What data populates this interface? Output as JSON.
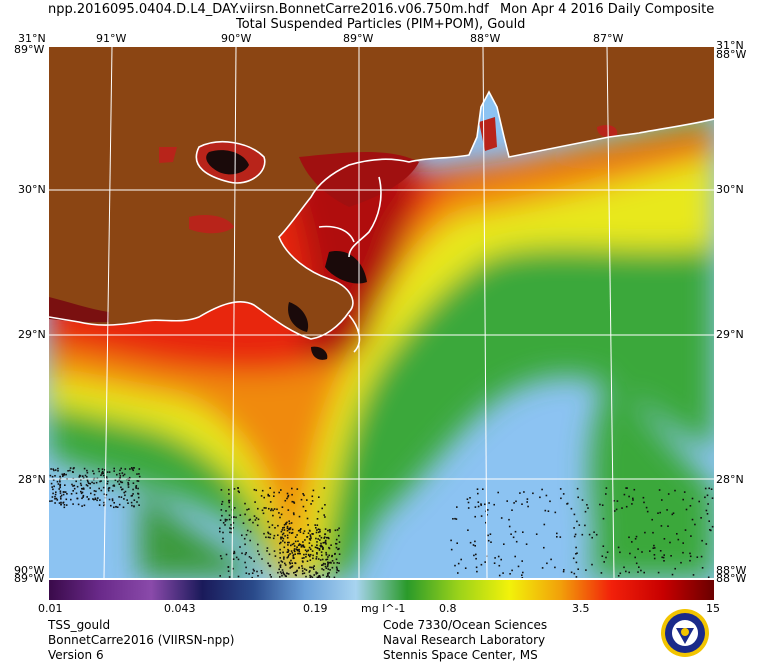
{
  "header": {
    "filename": "npp.2016095.0404.D.L4_DAY.viirsn.BonnetCarre2016.v06.750m.hdf",
    "date": "Mon Apr  4 2016 Daily Composite",
    "product": "Total Suspended Particles (PIM+POM), Gould"
  },
  "map": {
    "top_lon_labels": [
      "91°W",
      "90°W",
      "89°W",
      "88°W",
      "87°W"
    ],
    "left_lat_labels": [
      "31°N",
      "30°N",
      "29°N",
      "28°N",
      "89°W"
    ],
    "right_lat_labels": [
      "31°N",
      "30°N",
      "29°N",
      "28°N",
      "88°W"
    ],
    "corner_labels": {
      "top_left_a": "31°N",
      "top_left_b": "89°W",
      "top_right_a": "31°N",
      "top_right_b": "88°W",
      "bottom_left_a": "90°W",
      "bottom_left_b": "89°W",
      "bottom_right_a": "88°W",
      "bottom_right_b": "88°W"
    },
    "colors": {
      "land": "#8b4513",
      "coast": "#ffffff",
      "clear_water": "#8cc3f2",
      "grid": "#ffffff"
    }
  },
  "colorbar": {
    "ticks": [
      "0.01",
      "0.043",
      "0.19",
      "0.8",
      "3.5",
      "15"
    ],
    "unit": "mg l^-1",
    "stops": [
      "#3a0a4a",
      "#6a2a8a",
      "#8a4aaa",
      "#1a1a5a",
      "#2a4a8a",
      "#6aa0d8",
      "#a8d4f0",
      "#2a9a2a",
      "#9ad21a",
      "#f2f20a",
      "#f2a00a",
      "#f2200a",
      "#c80000",
      "#6a0000"
    ]
  },
  "footer": {
    "left": [
      "TSS_gould",
      "BonnetCarre2016 (VIIRSN-npp)",
      "Version 6"
    ],
    "right": [
      "Code 7330/Ocean Sciences",
      "Naval Research Laboratory",
      "Stennis Space Center, MS"
    ]
  },
  "seal": {
    "icon": "navy-seal-emblem-icon"
  }
}
